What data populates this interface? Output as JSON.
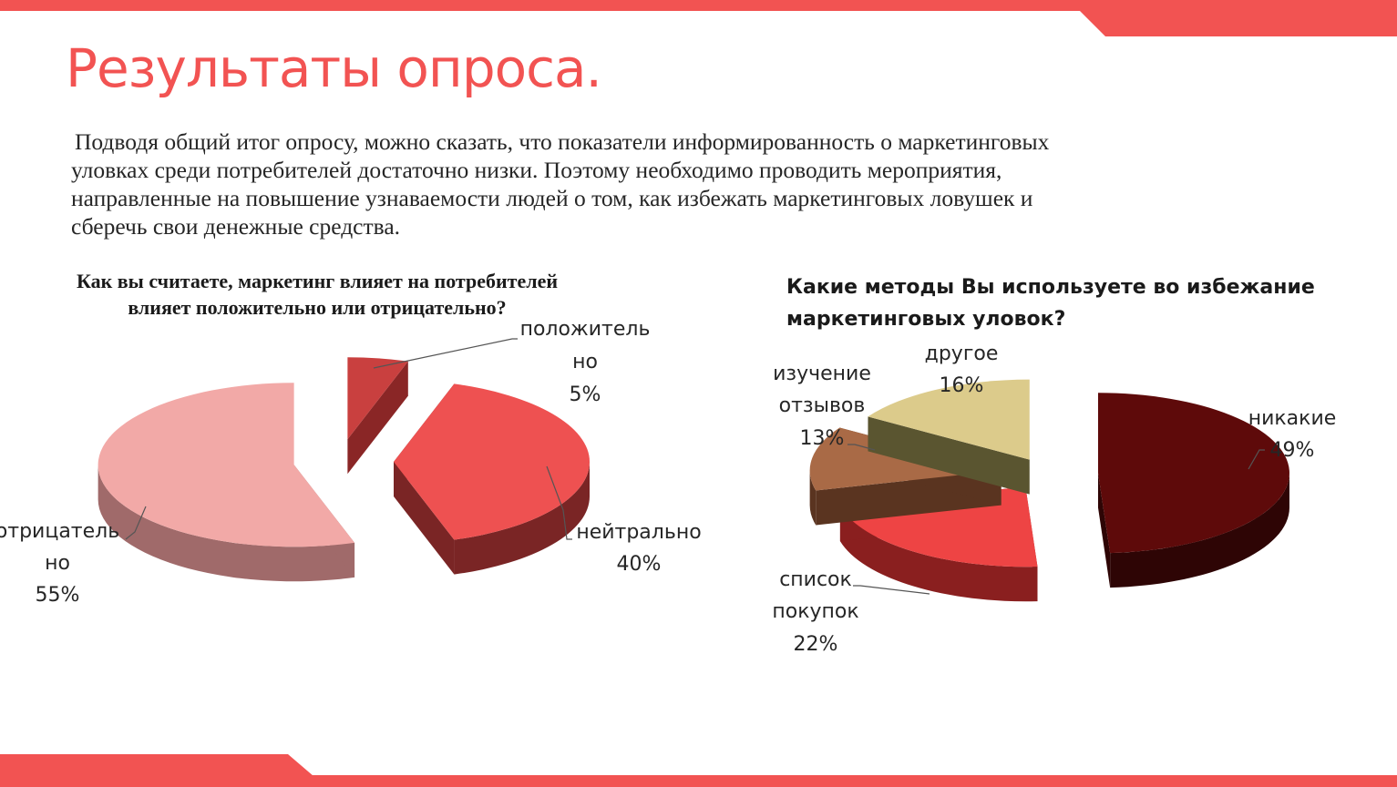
{
  "theme": {
    "accent": "#f25352",
    "title_color": "#f25352"
  },
  "slide": {
    "title": "Результаты опроса.",
    "intro_lines": [
      "Подводя общий итог опросу, можно сказать, что показатели информированность о маркетинговых",
      "уловках среди потребителей достаточно низки. Поэтому  необходимо проводить мероприятия,",
      "направленные на повышение узнаваемости людей о том, как избежать маркетинговых ловушек и",
      "сберечь свои денежные средства."
    ]
  },
  "chart_data": [
    {
      "type": "pie",
      "style": "3d-exploded",
      "title_lines": [
        "Как вы считаете, маркетинг влияет на потребителей",
        "влияет  положительно или отрицательно?"
      ],
      "slices": [
        {
          "name": "положительно",
          "label_lines": [
            "положитель",
            "но",
            "5%"
          ],
          "value": 5,
          "color": "#c9403f",
          "side_color": "#8a2626"
        },
        {
          "name": "нейтрально",
          "label_lines": [
            "нейтрально",
            "40%"
          ],
          "value": 40,
          "color": "#ee5151",
          "side_color": "#7a2525"
        },
        {
          "name": "отрицательно",
          "label_lines": [
            "отрицатель",
            "но",
            "55%"
          ],
          "value": 55,
          "color": "#f2a9a7",
          "side_color": "#a06a6a"
        }
      ]
    },
    {
      "type": "pie",
      "style": "3d-exploded",
      "title_lines": [
        "Какие методы Вы используете во избежание",
        "маркетинговых уловок?"
      ],
      "slices": [
        {
          "name": "никакие",
          "label_lines": [
            "никакие",
            "49%"
          ],
          "value": 49,
          "color": "#5e0a0a",
          "side_color": "#2e0505"
        },
        {
          "name": "список покупок",
          "label_lines": [
            "список",
            "покупок",
            "22%"
          ],
          "value": 22,
          "color": "#ee4444",
          "side_color": "#8a1f1f"
        },
        {
          "name": "изучение отзывов",
          "label_lines": [
            "изучение",
            "отзывов",
            "13%"
          ],
          "value": 13,
          "color": "#a96a46",
          "side_color": "#5a3420"
        },
        {
          "name": "другое",
          "label_lines": [
            "другое",
            "16%"
          ],
          "value": 16,
          "color": "#dccb8b",
          "side_color": "#5a5530"
        }
      ]
    }
  ]
}
